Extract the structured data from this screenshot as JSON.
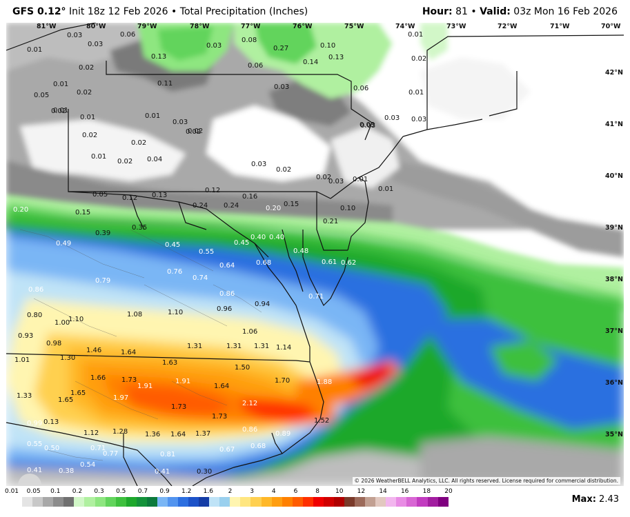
{
  "header": {
    "model": "GFS 0.12°",
    "init": "Init 18z 12 Feb 2026",
    "product": "Total Precipitation (Inches)",
    "hour_label": "Hour:",
    "hour_value": "81",
    "valid_label": "Valid:",
    "valid_value": "03z Mon 16 Feb 2026"
  },
  "map": {
    "lon_labels": [
      "81°W",
      "80°W",
      "79°W",
      "78°W",
      "77°W",
      "76°W",
      "75°W",
      "74°W",
      "73°W",
      "72°W",
      "71°W",
      "70°W"
    ],
    "lat_labels": [
      "42°N",
      "41°N",
      "40°N",
      "39°N",
      "38°N",
      "37°N",
      "36°N",
      "35°N"
    ],
    "copyright": "© 2026 WeatherBELL Analytics, LLC. All rights reserved. License required for commercial distribution.",
    "logo_text": "WeatherBELL",
    "values": [
      "0.01",
      "0.03",
      "0.06",
      "0.05",
      "0.03",
      "0.03",
      "0.08",
      "0.27",
      "0.10",
      "0.01",
      "0.02",
      "0.13",
      "0.14",
      "0.13",
      "0.02",
      "0.01",
      "0.02",
      "0.11",
      "0.06",
      "0.01",
      "0.02",
      "0.01",
      "0.03",
      "0.06",
      "0.01",
      "0.01",
      "0.03",
      "0.02",
      "0.03",
      "0.03",
      "0.03",
      "0.02",
      "0.02",
      "0.02",
      "0.01",
      "0.02",
      "0.04",
      "0.03",
      "0.03",
      "0.02",
      "0.02",
      "0.03",
      "0.01",
      "0.05",
      "0.01",
      "0.20",
      "0.15",
      "0.12",
      "0.13",
      "0.12",
      "0.16",
      "0.24",
      "0.24",
      "0.10",
      "0.21",
      "0.35",
      "0.39",
      "0.20",
      "0.15",
      "0.40",
      "0.49",
      "0.45",
      "0.45",
      "0.40",
      "0.48",
      "0.55",
      "0.64",
      "0.68",
      "0.61",
      "0.62",
      "0.86",
      "0.79",
      "0.76",
      "0.74",
      "0.86",
      "0.71",
      "0.94",
      "0.96",
      "0.80",
      "1.00",
      "1.10",
      "1.08",
      "1.10",
      "0.93",
      "0.98",
      "1.06",
      "1.46",
      "1.64",
      "1.31",
      "1.31",
      "1.31",
      "1.14",
      "1.01",
      "1.30",
      "1.63",
      "1.50",
      "1.66",
      "1.73",
      "1.91",
      "1.91",
      "1.64",
      "1.70",
      "1.88",
      "1.33",
      "1.65",
      "1.65",
      "1.97",
      "1.73",
      "2.12",
      "0.99",
      "0.13",
      "1.73",
      "1.52",
      "1.12",
      "1.28",
      "1.36",
      "1.64",
      "1.37",
      "0.86",
      "0.89",
      "0.55",
      "0.50",
      "0.71",
      "0.77",
      "0.81",
      "0.67",
      "0.68",
      "0.54",
      "0.41",
      "0.38",
      "0.41",
      "0.30"
    ]
  },
  "colorbar": {
    "ticks": [
      "0.01",
      "0.05",
      "0.1",
      "0.2",
      "0.3",
      "0.5",
      "0.7",
      "0.9",
      "1.2",
      "1.6",
      "2",
      "3",
      "4",
      "6",
      "8",
      "10",
      "12",
      "14",
      "16",
      "18",
      "20"
    ],
    "colors": [
      "#ffffff",
      "#e4e4e4",
      "#c8c8c8",
      "#a8a8a8",
      "#8c8c8c",
      "#707070",
      "#d2f7c8",
      "#b0f0a0",
      "#8ee680",
      "#62d45c",
      "#3ec03e",
      "#1ea82c",
      "#14923a",
      "#0c7a3c",
      "#7ab6f5",
      "#5294ef",
      "#2c6fe0",
      "#1c52c8",
      "#143ca6",
      "#bfe3f7",
      "#9ad0ee",
      "#fff5b0",
      "#ffe680",
      "#ffd050",
      "#ffb828",
      "#ff9e10",
      "#ff8000",
      "#ff5c00",
      "#ff3000",
      "#f00000",
      "#d00000",
      "#b00000",
      "#7a3a2a",
      "#9c6a5a",
      "#c2a092",
      "#e2c8c0",
      "#f2b6ee",
      "#e88ce4",
      "#d866d4",
      "#c23cc0",
      "#a21ea0",
      "#800080"
    ],
    "max_label": "Max:",
    "max_value": "2.43"
  }
}
